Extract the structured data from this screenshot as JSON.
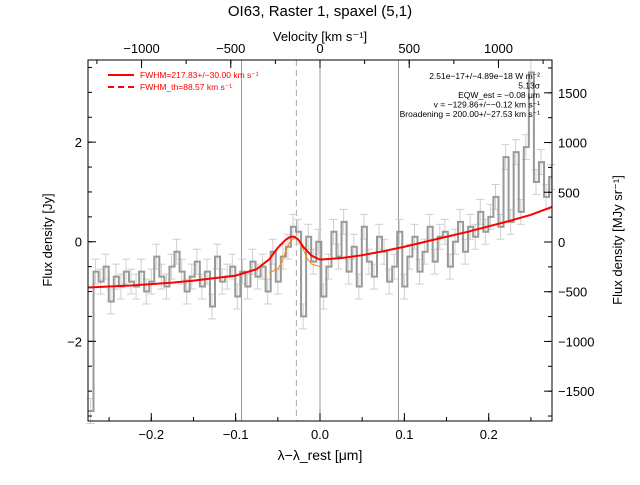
{
  "chart_data": {
    "type": "line",
    "title": "OI63, Raster 1, spaxel (5,1)",
    "xlabel": "λ−λ_rest [μm]",
    "ylabel": "Flux density [Jy]",
    "top_xlabel": "Velocity [km s⁻¹]",
    "right_ylabel": "Flux density [MJy sr⁻¹]",
    "xlim": [
      -0.275,
      0.275
    ],
    "ylim": [
      -3.6,
      3.65
    ],
    "top_xlim": [
      -1300,
      1300
    ],
    "right_ylim": [
      -1800,
      1830
    ],
    "x_ticks": [
      -0.2,
      -0.1,
      0.0,
      0.1,
      0.2
    ],
    "x_tick_labels": [
      "−0.2",
      "−0.1",
      "0.0",
      "0.1",
      "0.2"
    ],
    "y_ticks": [
      -2,
      0,
      2
    ],
    "y_tick_labels": [
      "−2",
      "0",
      "2"
    ],
    "top_ticks": [
      -1000,
      -500,
      0,
      500,
      1000
    ],
    "top_tick_labels": [
      "−1000",
      "−500",
      "0",
      "500",
      "1000"
    ],
    "right_ticks": [
      -1500,
      -1000,
      -500,
      0,
      500,
      1000,
      1500
    ],
    "right_tick_labels": [
      "−1500",
      "−1000",
      "−500",
      "0",
      "500",
      "1000",
      "1500"
    ],
    "vlines_solid": [
      -0.093,
      0.0,
      0.093
    ],
    "vline_dashed": -0.028,
    "legend": {
      "position": "top-left",
      "entries": [
        {
          "label": "FWHM=217.83+/−30.00 km s⁻¹",
          "style": "solid",
          "color": "#ff0000"
        },
        {
          "label": "FWHM_th=88.57 km s⁻¹",
          "style": "dashed",
          "color": "#ff0000"
        }
      ]
    },
    "annotations": [
      "2.51e−17+/−4.89e−18 W m⁻²",
      "5.13σ",
      "EQW_est = −0.08 μm",
      "v = −129.86+/−−0.12 km s⁻¹",
      "Broadening = 200.00+/−27.53 km s⁻¹"
    ],
    "series": [
      {
        "name": "spectrum",
        "color": "#999999",
        "x": [
          -0.272,
          -0.266,
          -0.26,
          -0.254,
          -0.248,
          -0.242,
          -0.236,
          -0.23,
          -0.224,
          -0.218,
          -0.212,
          -0.206,
          -0.2,
          -0.194,
          -0.188,
          -0.182,
          -0.176,
          -0.17,
          -0.164,
          -0.158,
          -0.152,
          -0.146,
          -0.14,
          -0.134,
          -0.128,
          -0.122,
          -0.116,
          -0.11,
          -0.104,
          -0.098,
          -0.092,
          -0.086,
          -0.08,
          -0.074,
          -0.068,
          -0.062,
          -0.056,
          -0.05,
          -0.044,
          -0.038,
          -0.032,
          -0.026,
          -0.02,
          -0.014,
          -0.008,
          -0.002,
          0.004,
          0.01,
          0.016,
          0.022,
          0.028,
          0.034,
          0.04,
          0.046,
          0.052,
          0.058,
          0.064,
          0.07,
          0.076,
          0.082,
          0.088,
          0.094,
          0.1,
          0.106,
          0.112,
          0.118,
          0.124,
          0.13,
          0.136,
          0.142,
          0.148,
          0.154,
          0.16,
          0.166,
          0.172,
          0.178,
          0.184,
          0.19,
          0.196,
          0.202,
          0.208,
          0.214,
          0.22,
          0.226,
          0.232,
          0.238,
          0.244,
          0.25,
          0.256,
          0.262,
          0.268,
          0.274
        ],
        "y": [
          -3.4,
          -0.6,
          -0.8,
          -0.5,
          -1.2,
          -0.7,
          -0.9,
          -0.6,
          -0.8,
          -0.9,
          -0.6,
          -1.0,
          -0.8,
          -0.3,
          -0.7,
          -0.9,
          -0.5,
          -0.2,
          -0.6,
          -1.0,
          -0.7,
          -0.4,
          -0.9,
          -0.6,
          -1.3,
          -0.3,
          -0.8,
          -0.7,
          -0.5,
          -1.1,
          -0.6,
          -0.9,
          -0.4,
          -0.7,
          -0.5,
          -1.0,
          -0.2,
          -0.8,
          -0.3,
          -0.1,
          0.3,
          0.2,
          -1.5,
          0.1,
          -0.4,
          0.0,
          -1.1,
          -0.5,
          0.2,
          -0.3,
          0.4,
          -0.6,
          -0.1,
          -0.9,
          0.3,
          -0.4,
          -0.7,
          0.1,
          -0.2,
          -0.8,
          -0.5,
          0.2,
          -0.9,
          -0.3,
          0.1,
          -0.6,
          -0.2,
          0.3,
          -0.4,
          0.1,
          0.2,
          -0.5,
          0.0,
          0.4,
          -0.2,
          0.3,
          0.1,
          0.6,
          0.2,
          0.5,
          0.9,
          0.3,
          1.7,
          0.4,
          1.8,
          0.6,
          1.9,
          3.4,
          1.2,
          1.6,
          0.9,
          1.3
        ],
        "yerr": 0.25
      },
      {
        "name": "fit",
        "color": "#ff0000",
        "x": [
          -0.275,
          -0.25,
          -0.225,
          -0.2,
          -0.175,
          -0.15,
          -0.125,
          -0.1,
          -0.075,
          -0.06,
          -0.05,
          -0.04,
          -0.035,
          -0.03,
          -0.025,
          -0.02,
          -0.01,
          0.0,
          0.025,
          0.05,
          0.075,
          0.1,
          0.125,
          0.15,
          0.175,
          0.2,
          0.225,
          0.25,
          0.275
        ],
        "y": [
          -0.92,
          -0.9,
          -0.88,
          -0.85,
          -0.82,
          -0.78,
          -0.73,
          -0.68,
          -0.55,
          -0.35,
          -0.12,
          0.05,
          0.1,
          0.1,
          0.03,
          -0.1,
          -0.28,
          -0.36,
          -0.33,
          -0.27,
          -0.19,
          -0.1,
          0.0,
          0.1,
          0.2,
          0.31,
          0.42,
          0.54,
          0.7
        ]
      },
      {
        "name": "gaussian",
        "color": "#ff8800",
        "x": [
          -0.06,
          -0.05,
          -0.045,
          -0.04,
          -0.035,
          -0.03,
          -0.025,
          -0.02,
          -0.015,
          -0.01,
          0.0
        ],
        "y": [
          -0.62,
          -0.55,
          -0.4,
          -0.15,
          0.02,
          0.08,
          0.02,
          -0.15,
          -0.34,
          -0.45,
          -0.5
        ]
      }
    ]
  }
}
